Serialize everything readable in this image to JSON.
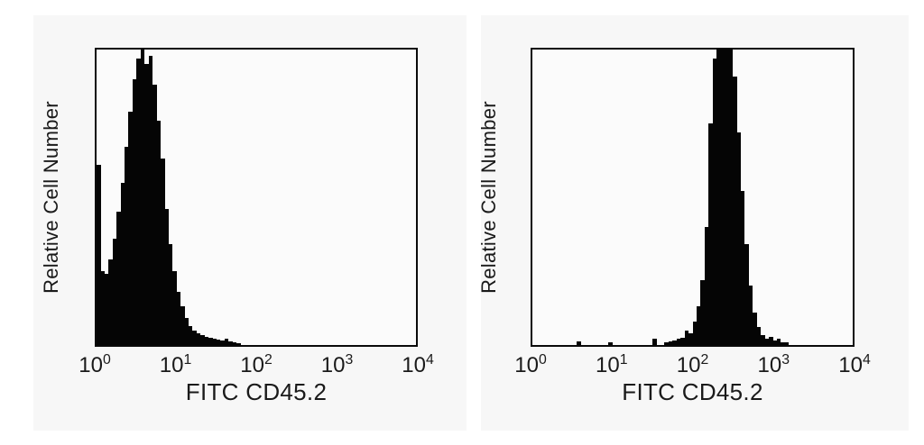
{
  "page": {
    "background": "#ffffff",
    "card_background": "#f7f7f7",
    "plot_background": "#fbfbfb",
    "ink": "#0a0a0a",
    "text_color": "#1a1a1a"
  },
  "chart_data": [
    {
      "type": "histogram",
      "panel": "left",
      "xlabel": "FITC CD45.2",
      "ylabel": "Relative Cell Number",
      "x_scale": "log10",
      "x_range": [
        1,
        10000
      ],
      "x_ticks": [
        {
          "base": "10",
          "exp": "0"
        },
        {
          "base": "10",
          "exp": "1"
        },
        {
          "base": "10",
          "exp": "2"
        },
        {
          "base": "10",
          "exp": "3"
        },
        {
          "base": "10",
          "exp": "4"
        }
      ],
      "fill_color": "#050505",
      "peak_x_approx": 3,
      "ylim_note": "relative counts, peak clipped at top of frame",
      "bins_per_decade": 20,
      "bin_heights_percent": [
        61,
        25,
        24,
        29,
        36,
        45,
        55,
        67,
        79,
        90,
        97,
        100,
        95,
        98,
        88,
        76,
        63,
        46,
        34,
        25,
        18,
        13,
        9,
        6.5,
        5,
        4,
        3.3,
        2.8,
        2.4,
        2,
        1.7,
        1.5,
        2.2,
        1.1,
        0.8,
        0.6,
        0,
        0,
        0,
        0,
        0,
        0,
        0,
        0,
        0,
        0,
        0,
        0,
        0,
        0,
        0,
        0,
        0,
        0,
        0,
        0,
        0,
        0,
        0,
        0,
        0,
        0,
        0,
        0,
        0,
        0,
        0,
        0,
        0,
        0,
        0,
        0,
        0,
        0,
        0,
        0,
        0,
        0,
        0,
        0
      ]
    },
    {
      "type": "histogram",
      "panel": "right",
      "xlabel": "FITC CD45.2",
      "ylabel": "Relative Cell Number",
      "x_scale": "log10",
      "x_range": [
        1,
        10000
      ],
      "x_ticks": [
        {
          "base": "10",
          "exp": "0"
        },
        {
          "base": "10",
          "exp": "1"
        },
        {
          "base": "10",
          "exp": "2"
        },
        {
          "base": "10",
          "exp": "3"
        },
        {
          "base": "10",
          "exp": "4"
        }
      ],
      "fill_color": "#050505",
      "peak_x_approx": 250,
      "ylim_note": "relative counts, peak clipped at top of frame",
      "bins_per_decade": 20,
      "bin_heights_percent": [
        0,
        0,
        0,
        0,
        0,
        0,
        0,
        0,
        0,
        0,
        0,
        1.2,
        0,
        0,
        0,
        0,
        0,
        0,
        0,
        1,
        0,
        0,
        0,
        0,
        0,
        0,
        0,
        0,
        0,
        0,
        2,
        0,
        0,
        1,
        1.2,
        1.5,
        2,
        2.5,
        5,
        4,
        8,
        13,
        22,
        40,
        75,
        97,
        100,
        100,
        100,
        100,
        91,
        72,
        52,
        34,
        20,
        11,
        6,
        3.5,
        2.2,
        2.8,
        1.5,
        2,
        1,
        0.8,
        0,
        0,
        0,
        0,
        0,
        0,
        0,
        0,
        0,
        0,
        0,
        0,
        0,
        0,
        0,
        0
      ]
    }
  ]
}
